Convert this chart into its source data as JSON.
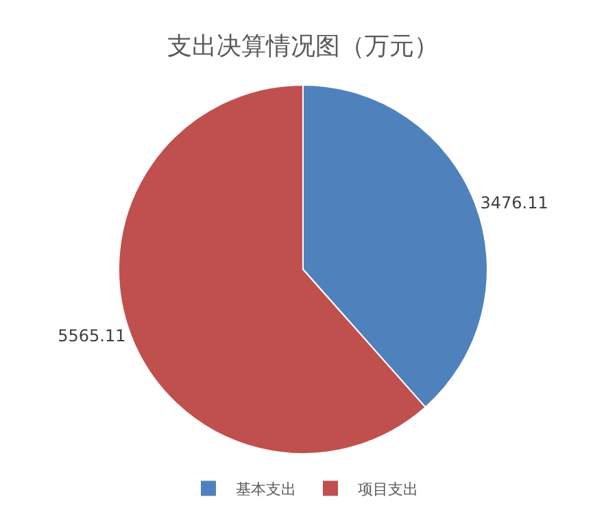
{
  "chart_data": {
    "type": "pie",
    "title": "支出决算情况图（万元）",
    "categories": [
      "基本支出",
      "项目支出"
    ],
    "values": [
      3476.11,
      5565.11
    ],
    "colors": [
      "#4f81bd",
      "#c0504d"
    ],
    "data_labels": true,
    "legend": "bottom"
  }
}
